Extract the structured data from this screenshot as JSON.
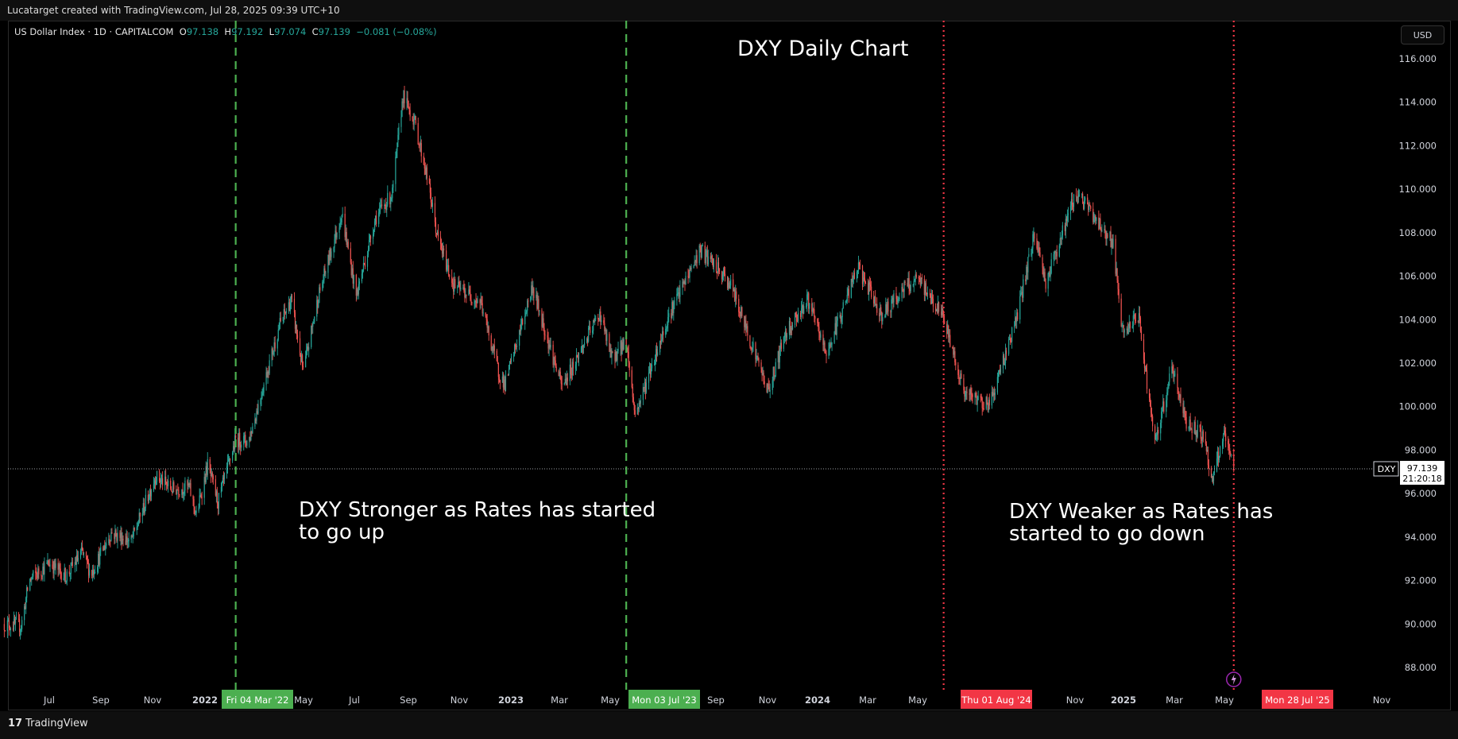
{
  "header": {
    "credit": "Lucatarget created with TradingView.com, Jul 28, 2025 09:39 UTC+10"
  },
  "legend": {
    "symbol": "US Dollar Index · 1D · CAPITALCOM",
    "o_label": "O",
    "o_value": "97.138",
    "h_label": "H",
    "h_value": "97.192",
    "l_label": "L",
    "l_value": "97.074",
    "c_label": "C",
    "c_value": "97.139",
    "change": "−0.081 (−0.08%)"
  },
  "currency_button": "USD",
  "footer": {
    "brand": "TradingView",
    "logo_glyph": "17"
  },
  "colors": {
    "up": "#26a69a",
    "down": "#ef5350",
    "green_marker": "#4caf50",
    "red_marker": "#f23645",
    "background": "#000000"
  },
  "chart_data": {
    "type": "candlestick",
    "title": "DXY Daily Chart",
    "ylim": [
      87,
      117
    ],
    "y_ticks": [
      "116.000",
      "114.000",
      "112.000",
      "110.000",
      "108.000",
      "106.000",
      "104.000",
      "102.000",
      "100.000",
      "98.000",
      "96.000",
      "94.000",
      "92.000",
      "90.000",
      "88.000"
    ],
    "x_ticks": [
      "Jul",
      "Sep",
      "Nov",
      "2022",
      "Fri 04 Mar '22",
      "May",
      "Jul",
      "Sep",
      "Nov",
      "2023",
      "Mar",
      "May",
      "Mon 03 Jul '23",
      "Sep",
      "Nov",
      "2024",
      "Mar",
      "May",
      "Thu 01 Aug '24",
      "Nov",
      "2025",
      "Mar",
      "May",
      "Mon 28 Jul '25",
      "Nov"
    ],
    "x_range": [
      "2021-05-20",
      "2025-12-01"
    ],
    "price_path": [
      [
        "2021-05-20",
        90.0
      ],
      [
        "2021-06-10",
        89.9
      ],
      [
        "2021-06-20",
        92.0
      ],
      [
        "2021-07-15",
        92.8
      ],
      [
        "2021-08-05",
        92.2
      ],
      [
        "2021-08-25",
        93.3
      ],
      [
        "2021-09-05",
        92.3
      ],
      [
        "2021-09-30",
        94.2
      ],
      [
        "2021-10-25",
        93.8
      ],
      [
        "2021-11-24",
        96.8
      ],
      [
        "2021-12-15",
        96.2
      ],
      [
        "2022-01-05",
        96.3
      ],
      [
        "2022-01-14",
        95.0
      ],
      [
        "2022-01-28",
        97.3
      ],
      [
        "2022-02-10",
        95.6
      ],
      [
        "2022-03-04",
        98.5
      ],
      [
        "2022-03-20",
        98.4
      ],
      [
        "2022-04-28",
        103.8
      ],
      [
        "2022-05-12",
        104.9
      ],
      [
        "2022-05-27",
        101.6
      ],
      [
        "2022-06-15",
        105.1
      ],
      [
        "2022-07-14",
        108.9
      ],
      [
        "2022-08-01",
        105.1
      ],
      [
        "2022-08-25",
        108.7
      ],
      [
        "2022-09-15",
        109.8
      ],
      [
        "2022-09-28",
        114.3
      ],
      [
        "2022-10-12",
        113.2
      ],
      [
        "2022-10-28",
        110.6
      ],
      [
        "2022-11-10",
        107.8
      ],
      [
        "2022-11-30",
        105.6
      ],
      [
        "2023-01-03",
        104.8
      ],
      [
        "2023-01-25",
        101.6
      ],
      [
        "2023-02-02",
        101.0
      ],
      [
        "2023-03-08",
        105.5
      ],
      [
        "2023-04-14",
        100.9
      ],
      [
        "2023-05-31",
        104.3
      ],
      [
        "2023-06-15",
        102.2
      ],
      [
        "2023-07-03",
        103.0
      ],
      [
        "2023-07-14",
        99.6
      ],
      [
        "2023-08-25",
        104.2
      ],
      [
        "2023-10-03",
        107.2
      ],
      [
        "2023-10-25",
        106.3
      ],
      [
        "2023-11-10",
        105.6
      ],
      [
        "2023-12-27",
        100.7
      ],
      [
        "2024-01-17",
        103.4
      ],
      [
        "2024-02-14",
        104.9
      ],
      [
        "2024-03-08",
        102.4
      ],
      [
        "2024-04-16",
        106.4
      ],
      [
        "2024-05-16",
        104.2
      ],
      [
        "2024-06-14",
        105.5
      ],
      [
        "2024-07-01",
        105.8
      ],
      [
        "2024-08-01",
        104.1
      ],
      [
        "2024-08-27",
        100.6
      ],
      [
        "2024-09-27",
        100.1
      ],
      [
        "2024-10-31",
        104.1
      ],
      [
        "2024-11-22",
        108.0
      ],
      [
        "2024-12-06",
        105.7
      ],
      [
        "2025-01-13",
        109.9
      ],
      [
        "2025-02-03",
        108.8
      ],
      [
        "2025-02-28",
        107.5
      ],
      [
        "2025-03-11",
        103.4
      ],
      [
        "2025-04-01",
        104.1
      ],
      [
        "2025-04-21",
        98.2
      ],
      [
        "2025-05-12",
        101.8
      ],
      [
        "2025-05-30",
        99.3
      ],
      [
        "2025-06-20",
        98.7
      ],
      [
        "2025-07-01",
        96.6
      ],
      [
        "2025-07-16",
        98.7
      ],
      [
        "2025-07-28",
        97.1
      ]
    ],
    "last_price": {
      "label": "DXY",
      "value": "97.139",
      "countdown": "21:20:18"
    },
    "vlines": [
      {
        "date": "2022-03-04",
        "style": "dashed",
        "color": "#4caf50"
      },
      {
        "date": "2023-07-03",
        "style": "dashed",
        "color": "#4caf50"
      },
      {
        "date": "2024-08-01",
        "style": "dotted",
        "color": "#f23645"
      },
      {
        "date": "2025-07-28",
        "style": "dotted",
        "color": "#f23645"
      }
    ],
    "annotations": [
      "DXY Stronger as Rates has started\nto go up",
      "DXY Weaker as Rates has\nstarted to go down"
    ]
  }
}
